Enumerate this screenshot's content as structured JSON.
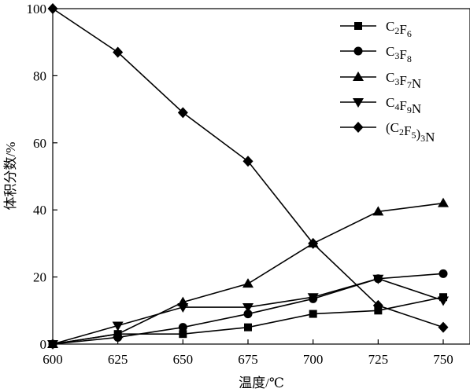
{
  "chart_data": {
    "type": "line",
    "xlabel": "温度/℃",
    "ylabel": "体积分数/%",
    "xlim": [
      600,
      750
    ],
    "ylim": [
      0,
      100
    ],
    "x": [
      600,
      625,
      650,
      675,
      700,
      725,
      750
    ],
    "xticks": [
      600,
      625,
      650,
      675,
      700,
      725,
      750
    ],
    "yticks": [
      0,
      20,
      40,
      60,
      80,
      100
    ],
    "grid": false,
    "legend_position": "top-right",
    "series": [
      {
        "name": "C2F6",
        "name_parts": [
          [
            "C",
            ""
          ],
          [
            "2",
            "sub"
          ],
          [
            "F",
            ""
          ],
          [
            "6",
            "sub"
          ]
        ],
        "marker": "square",
        "values": [
          0,
          3,
          3,
          5,
          9,
          10,
          14
        ]
      },
      {
        "name": "C3F8",
        "name_parts": [
          [
            "C",
            ""
          ],
          [
            "3",
            "sub"
          ],
          [
            "F",
            ""
          ],
          [
            "8",
            "sub"
          ]
        ],
        "marker": "circle",
        "values": [
          0,
          2,
          5,
          9,
          13.5,
          19.5,
          21
        ]
      },
      {
        "name": "C3F7N",
        "name_parts": [
          [
            "C",
            ""
          ],
          [
            "3",
            "sub"
          ],
          [
            "F",
            ""
          ],
          [
            "7",
            "sub"
          ],
          [
            "N",
            ""
          ]
        ],
        "marker": "triangle-up",
        "values": [
          0,
          3,
          12.5,
          18,
          30,
          39.5,
          42
        ]
      },
      {
        "name": "C4F9N",
        "name_parts": [
          [
            "C",
            ""
          ],
          [
            "4",
            "sub"
          ],
          [
            "F",
            ""
          ],
          [
            "9",
            "sub"
          ],
          [
            "N",
            ""
          ]
        ],
        "marker": "triangle-down",
        "values": [
          0,
          5.5,
          11,
          11,
          14,
          19.5,
          13
        ]
      },
      {
        "name": "(C2F5)3N",
        "name_parts": [
          [
            "(C",
            ""
          ],
          [
            "2",
            "sub"
          ],
          [
            "F",
            ""
          ],
          [
            "5",
            "sub"
          ],
          [
            ")",
            ""
          ],
          [
            "3",
            "sub"
          ],
          [
            "N",
            ""
          ]
        ],
        "marker": "diamond",
        "values": [
          100,
          87,
          69,
          54.5,
          30,
          11.5,
          5
        ]
      }
    ]
  },
  "colors": {
    "line": "#000000",
    "background": "#ffffff"
  }
}
